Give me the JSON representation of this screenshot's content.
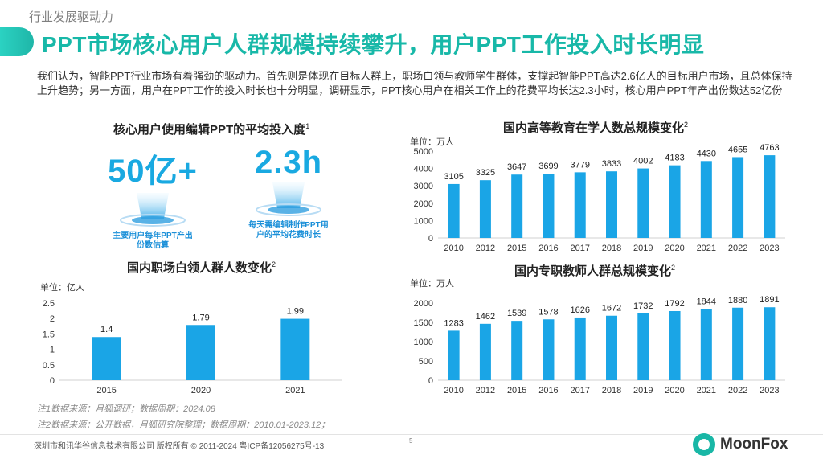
{
  "header": {
    "section_label": "行业发展驱动力",
    "title": "PPT市场核心用户人群规模持续攀升，用户PPT工作投入时长明显",
    "intro": "我们认为，智能PPT行业市场有着强劲的驱动力。首先则是体现在目标人群上，职场白领与教师学生群体，支撑起智能PPT高达2.6亿人的目标用户市场，且总体保持上升趋势；另一方面，用户在PPT工作的投入时长也十分明显，调研显示，PPT核心用户在相关工作上的花费平均长达2.3小时，核心用户PPT年产出份数达52亿份"
  },
  "kpi_panel": {
    "title": "核心用户使用编辑PPT的平均投入度",
    "title_sup": "1",
    "items": [
      {
        "value": "50亿+",
        "caption_line1": "主要用户每年PPT产出",
        "caption_line2": "份数估算"
      },
      {
        "value": "2.3h",
        "caption_line1": "每天需编辑制作PPT用",
        "caption_line2": "户的平均花费时长"
      }
    ]
  },
  "chart_data": [
    {
      "id": "white_collar",
      "type": "bar",
      "title": "国内职场白领人群人数变化",
      "title_sup": "2",
      "unit": "单位：亿人",
      "categories": [
        "2015",
        "2020",
        "2021"
      ],
      "values": [
        1.4,
        1.79,
        1.99
      ],
      "ylim": [
        0,
        2.5
      ],
      "yticks": [
        "0",
        "0.5",
        "1",
        "1.5",
        "2",
        "2.5"
      ],
      "grid": false,
      "bar_color": "#1aa5e6"
    },
    {
      "id": "higher_edu",
      "type": "bar",
      "title": "国内高等教育在学人数总规模变化",
      "title_sup": "2",
      "unit": "单位：万人",
      "categories": [
        "2010",
        "2012",
        "2015",
        "2016",
        "2017",
        "2018",
        "2019",
        "2020",
        "2021",
        "2022",
        "2023"
      ],
      "values": [
        3105,
        3325,
        3647,
        3699,
        3779,
        3833,
        4002,
        4183,
        4430,
        4655,
        4763
      ],
      "ylim": [
        0,
        5000
      ],
      "yticks": [
        "0",
        "1000",
        "2000",
        "3000",
        "4000",
        "5000"
      ],
      "grid": false,
      "bar_color": "#1aa5e6"
    },
    {
      "id": "vocational_teachers",
      "type": "bar",
      "title": "国内专职教师人群总规模变化",
      "title_sup": "2",
      "unit": "单位：万人",
      "categories": [
        "2010",
        "2012",
        "2015",
        "2016",
        "2017",
        "2018",
        "2019",
        "2020",
        "2021",
        "2022",
        "2023"
      ],
      "values": [
        1283,
        1462,
        1539,
        1578,
        1626,
        1672,
        1732,
        1792,
        1844,
        1880,
        1891
      ],
      "ylim": [
        0,
        2000
      ],
      "yticks": [
        "0",
        "500",
        "1000",
        "1500",
        "2000"
      ],
      "grid": false,
      "bar_color": "#1aa5e6"
    }
  ],
  "notes": {
    "note1": "注1数据来源：月狐调研；数据周期：2024.08",
    "note2": "注2数据来源：公开数据，月狐研究院整理；数据周期：2010.01-2023.12；"
  },
  "footer": {
    "copyright": "深圳市和讯华谷信息技术有限公司 版权所有 © 2011-2024 粤ICP备12056275号-13",
    "page": "5",
    "logo_text": "MoonFox"
  },
  "colors": {
    "accent": "#18b8a8",
    "bar": "#1aa5e6",
    "kpi": "#19a9e1"
  }
}
